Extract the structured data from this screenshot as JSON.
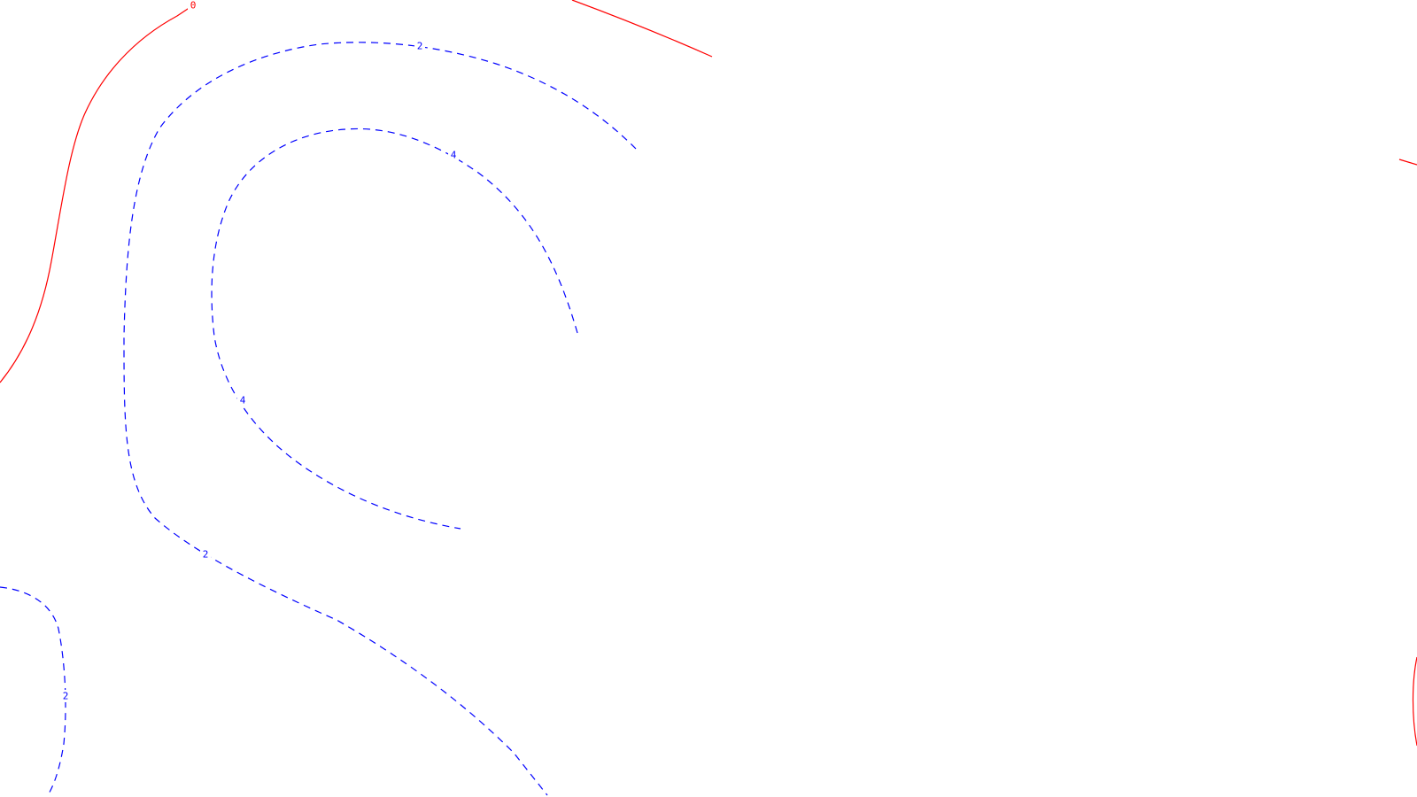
{
  "map": {
    "background": "#ffffff",
    "styles": {
      "zero": {
        "color": "#ff0000",
        "dash": "solid"
      },
      "positive": {
        "color": "#0000ff",
        "dash": "dashed"
      }
    },
    "contours": [
      {
        "id": "zero-contour-left",
        "level": "0",
        "style": "zero"
      },
      {
        "id": "zero-contour-top",
        "level": "0",
        "style": "zero"
      },
      {
        "id": "zero-contour-right-upper",
        "level": "0",
        "style": "zero"
      },
      {
        "id": "zero-contour-right-lower",
        "level": "0",
        "style": "zero"
      },
      {
        "id": "two-contour-outer",
        "level": "2",
        "style": "positive"
      },
      {
        "id": "four-contour-inner",
        "level": "4",
        "style": "positive"
      },
      {
        "id": "two-contour-lower-left",
        "level": "2",
        "style": "positive"
      }
    ],
    "labels": [
      {
        "id": "label-zero-top",
        "text": "0",
        "style": "zero"
      },
      {
        "id": "label-two-top",
        "text": "2",
        "style": "positive"
      },
      {
        "id": "label-two-lower",
        "text": "2",
        "style": "positive"
      },
      {
        "id": "label-four-top",
        "text": "4",
        "style": "positive"
      },
      {
        "id": "label-four-left",
        "text": "4",
        "style": "positive"
      },
      {
        "id": "label-two-bottom-left",
        "text": "2",
        "style": "positive"
      }
    ]
  }
}
